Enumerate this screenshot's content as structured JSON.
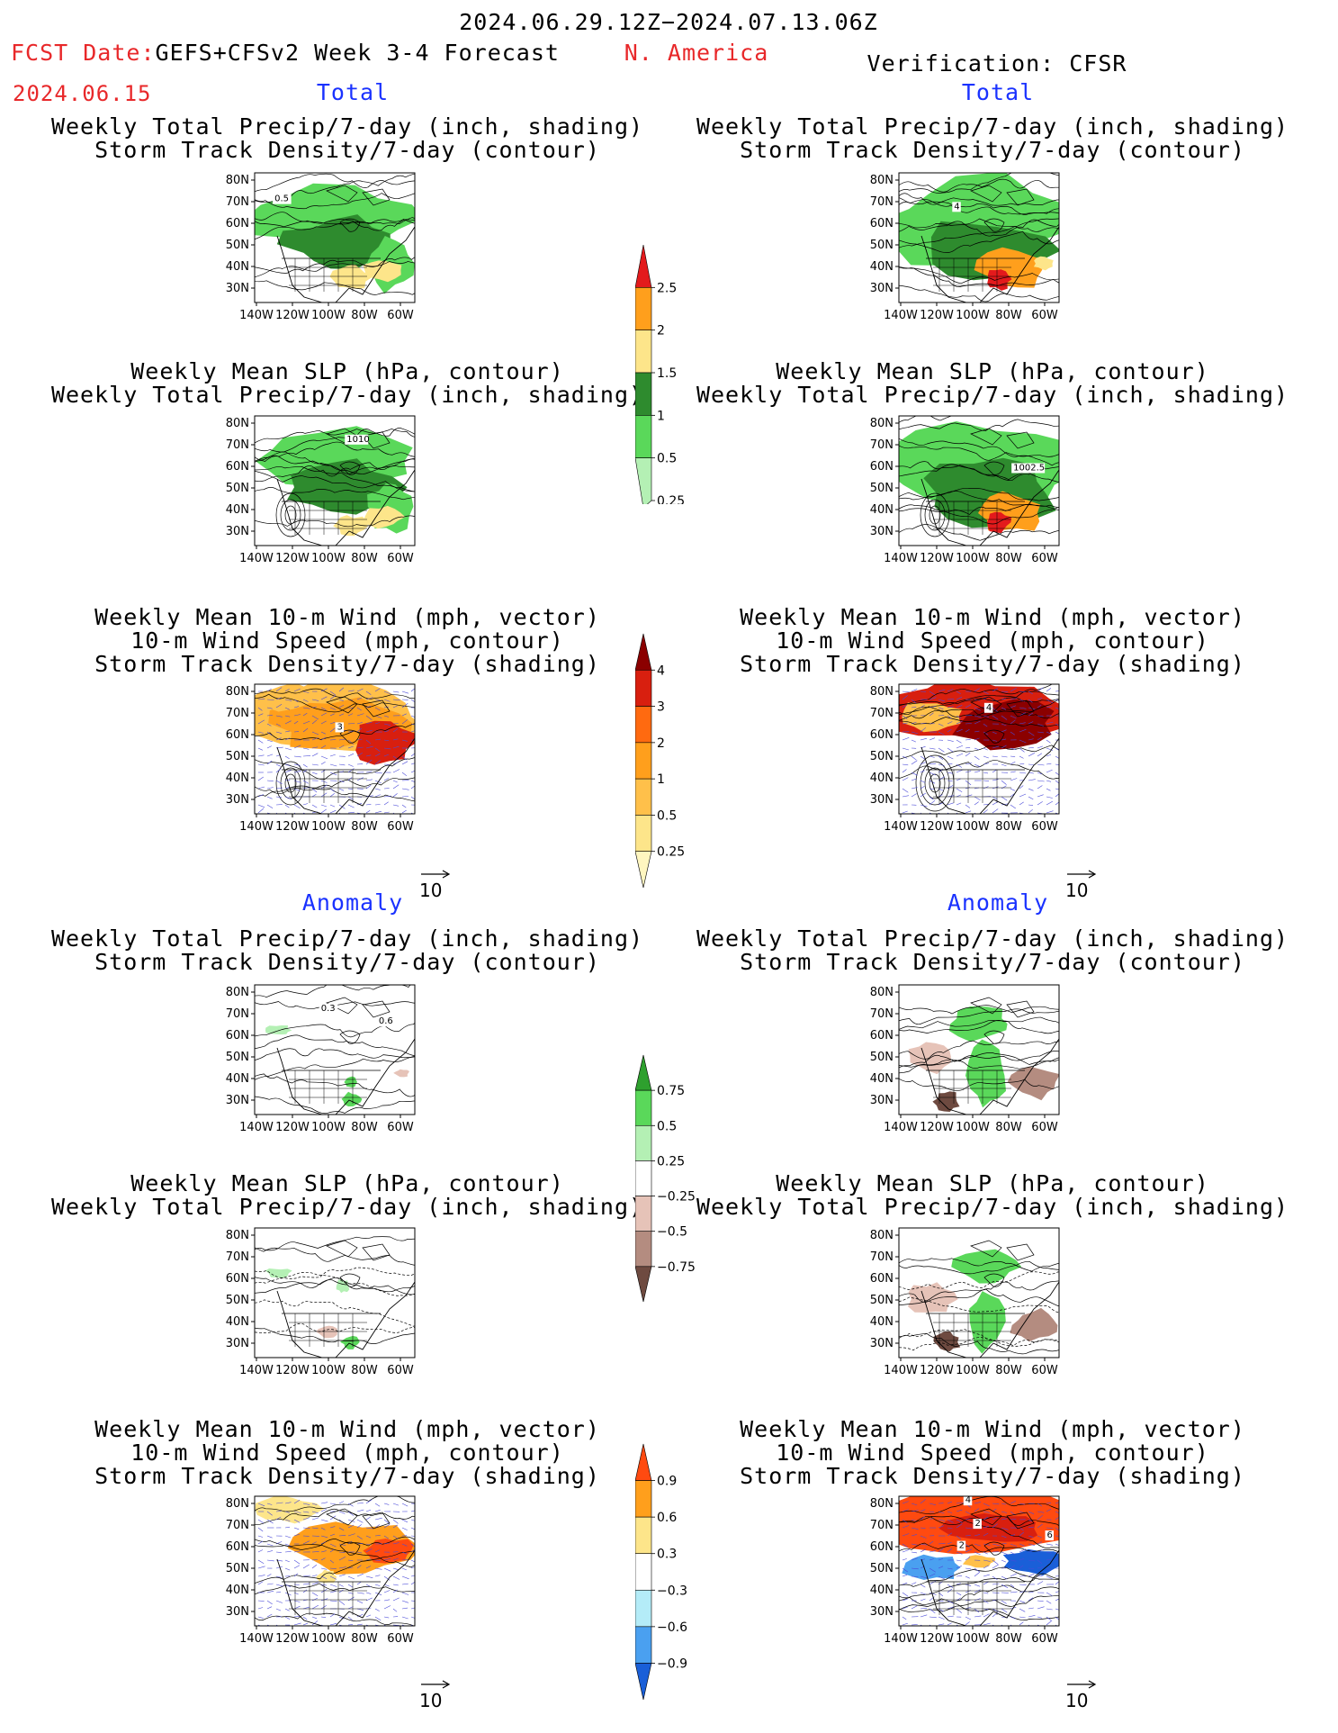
{
  "header": {
    "date_range": "2024.06.29.12Z−2024.07.13.06Z",
    "fcst_label": "FCST Date:",
    "forecast_title": "GEFS+CFSv2 Week 3-4 Forecast",
    "fcst_date": "2024.06.15",
    "region": "N. America",
    "verification": "Verification: CFSR"
  },
  "sections": {
    "total": "Total",
    "anomaly": "Anomaly"
  },
  "panel_titles": {
    "precip_storm": [
      "Weekly Total Precip/7-day (inch, shading)",
      "Storm Track Density/7-day (contour)"
    ],
    "slp_precip": [
      "Weekly Mean SLP (hPa, contour)",
      "Weekly Total Precip/7-day (inch, shading)"
    ],
    "wind_storm": [
      "Weekly Mean 10-m Wind (mph, vector)",
      "10-m Wind Speed (mph, contour)",
      "Storm Track Density/7-day (shading)"
    ]
  },
  "axes": {
    "lat_labels": [
      "80N",
      "70N",
      "60N",
      "50N",
      "40N",
      "30N"
    ],
    "lon_labels": [
      "140W",
      "120W",
      "100W",
      "80W",
      "60W"
    ],
    "vector_ref": "10"
  },
  "contour_labels": {
    "l_total_precip": "0.5",
    "l_total_slp": "1010",
    "l_total_wind": "3",
    "r_total_precip": "4",
    "r_total_slp": "1002.5",
    "r_total_wind": "4",
    "l_anom_precip_a": "0.3",
    "l_anom_precip_b": "0.6",
    "r_anom_wind_a": "4",
    "r_anom_wind_b": "2",
    "r_anom_wind_c": "2",
    "r_anom_wind_d": "6"
  },
  "colorbars": {
    "total_precip": {
      "labels": [
        "2.5",
        "2",
        "1.5",
        "1",
        "0.5",
        "0.25"
      ],
      "colors": [
        "#e31a1c",
        "#ff9f1c",
        "#fde58a",
        "#2e8b2e",
        "#5ad85a",
        "#b4f0b4"
      ]
    },
    "total_storm": {
      "labels": [
        "4",
        "3",
        "2",
        "1",
        "0.5",
        "0.25"
      ],
      "colors": [
        "#8b0000",
        "#d81f0f",
        "#ff6a10",
        "#ff9f1c",
        "#ffc04a",
        "#fde58a",
        "#fff6c0"
      ]
    },
    "anom_precip": {
      "labels": [
        "0.75",
        "0.5",
        "0.25",
        "−0.25",
        "−0.5",
        "−0.75"
      ],
      "colors": [
        "#2ea02e",
        "#5ad85a",
        "#b4f0b4",
        "#ffffff",
        "#e6c3b8",
        "#b48c80",
        "#6e4a40"
      ]
    },
    "anom_storm": {
      "labels": [
        "0.9",
        "0.6",
        "0.3",
        "−0.3",
        "−0.6",
        "−0.9"
      ],
      "colors": [
        "#ff4a10",
        "#ff9f1c",
        "#fde58a",
        "#ffffff",
        "#b4ecf8",
        "#4aa0f0",
        "#1a5fd8"
      ]
    }
  }
}
